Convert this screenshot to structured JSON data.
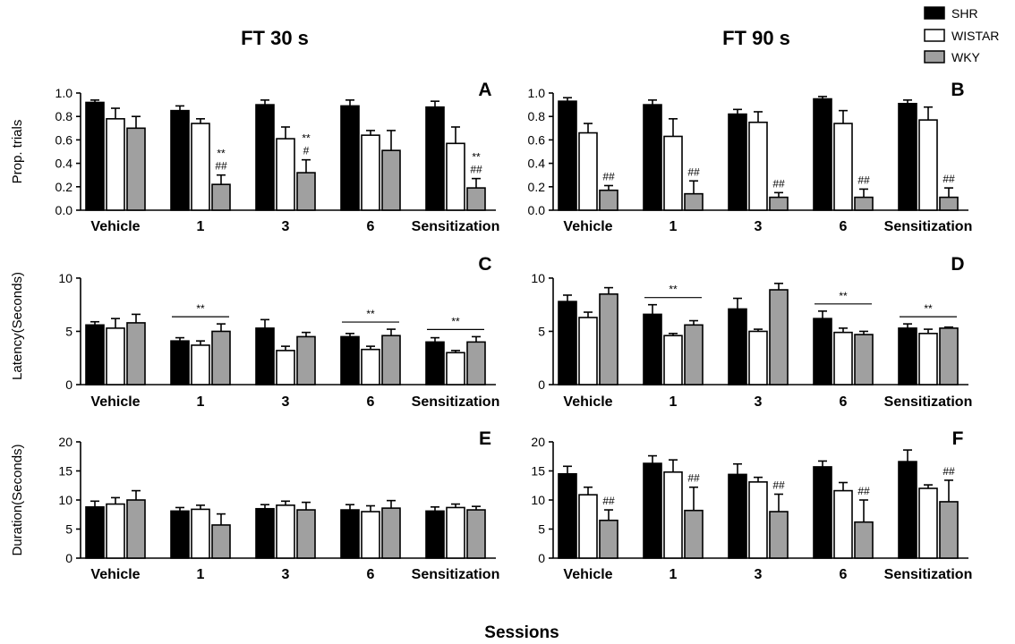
{
  "figure": {
    "col_titles": [
      "FT 30 s",
      "FT 90 s"
    ],
    "xlabel": "Sessions",
    "legend": [
      {
        "label": "SHR",
        "color": "#000000"
      },
      {
        "label": "WISTAR",
        "color": "#ffffff"
      },
      {
        "label": "WKY",
        "color": "#a0a0a0"
      }
    ]
  },
  "chart_data": [
    {
      "panel": "A",
      "type": "bar",
      "ylabel": "Prop. trials",
      "ylim": [
        0,
        1.0
      ],
      "yticks": [
        "0.0",
        "0.2",
        "0.4",
        "0.6",
        "0.8",
        "1.0"
      ],
      "categories": [
        "Vehicle",
        "1",
        "3",
        "6",
        "Sensitization"
      ],
      "series": [
        {
          "name": "SHR",
          "values": [
            0.92,
            0.85,
            0.9,
            0.89,
            0.88
          ],
          "errors": [
            0.02,
            0.04,
            0.04,
            0.05,
            0.05
          ]
        },
        {
          "name": "WISTAR",
          "values": [
            0.78,
            0.74,
            0.61,
            0.64,
            0.57
          ],
          "errors": [
            0.09,
            0.04,
            0.1,
            0.04,
            0.14
          ]
        },
        {
          "name": "WKY",
          "values": [
            0.7,
            0.22,
            0.32,
            0.51,
            0.19
          ],
          "errors": [
            0.1,
            0.08,
            0.11,
            0.17,
            0.08
          ]
        }
      ],
      "annotations": [
        {
          "category": "1",
          "lines": [
            "**",
            "##"
          ]
        },
        {
          "category": "3",
          "lines": [
            "**",
            "#"
          ]
        },
        {
          "category": "Sensitization",
          "lines": [
            "**",
            "##"
          ]
        }
      ]
    },
    {
      "panel": "B",
      "type": "bar",
      "ylabel": "",
      "ylim": [
        0,
        1.0
      ],
      "yticks": [
        "0.0",
        "0.2",
        "0.4",
        "0.6",
        "0.8",
        "1.0"
      ],
      "categories": [
        "Vehicle",
        "1",
        "3",
        "6",
        "Sensitization"
      ],
      "series": [
        {
          "name": "SHR",
          "values": [
            0.93,
            0.9,
            0.82,
            0.95,
            0.91
          ],
          "errors": [
            0.03,
            0.04,
            0.04,
            0.02,
            0.03
          ]
        },
        {
          "name": "WISTAR",
          "values": [
            0.66,
            0.63,
            0.75,
            0.74,
            0.77
          ],
          "errors": [
            0.08,
            0.15,
            0.09,
            0.11,
            0.11
          ]
        },
        {
          "name": "WKY",
          "values": [
            0.17,
            0.14,
            0.11,
            0.11,
            0.11
          ],
          "errors": [
            0.04,
            0.11,
            0.04,
            0.07,
            0.08
          ]
        }
      ],
      "annotations": [
        {
          "category": "Vehicle",
          "lines": [
            "##"
          ]
        },
        {
          "category": "1",
          "lines": [
            "##"
          ]
        },
        {
          "category": "3",
          "lines": [
            "##"
          ]
        },
        {
          "category": "6",
          "lines": [
            "##"
          ]
        },
        {
          "category": "Sensitization",
          "lines": [
            "##"
          ]
        }
      ]
    },
    {
      "panel": "C",
      "type": "bar",
      "ylabel": "Latency(Seconds)",
      "ylim": [
        0,
        11
      ],
      "yticks": [
        "0",
        "5",
        "10"
      ],
      "categories": [
        "Vehicle",
        "1",
        "3",
        "6",
        "Sensitization"
      ],
      "series": [
        {
          "name": "SHR",
          "values": [
            5.6,
            4.1,
            5.3,
            4.5,
            4.0
          ],
          "errors": [
            0.3,
            0.3,
            0.8,
            0.3,
            0.4
          ]
        },
        {
          "name": "WISTAR",
          "values": [
            5.3,
            3.7,
            3.2,
            3.3,
            3.0
          ],
          "errors": [
            0.9,
            0.4,
            0.4,
            0.3,
            0.2
          ]
        },
        {
          "name": "WKY",
          "values": [
            5.8,
            5.0,
            4.5,
            4.6,
            4.0
          ],
          "errors": [
            0.8,
            0.7,
            0.4,
            0.6,
            0.5
          ]
        }
      ],
      "brackets": [
        {
          "category": "1",
          "label": "**"
        },
        {
          "category": "6",
          "label": "**"
        },
        {
          "category": "Sensitization",
          "label": "**"
        }
      ]
    },
    {
      "panel": "D",
      "type": "bar",
      "ylabel": "",
      "ylim": [
        0,
        11
      ],
      "yticks": [
        "0",
        "5",
        "10"
      ],
      "categories": [
        "Vehicle",
        "1",
        "3",
        "6",
        "Sensitization"
      ],
      "series": [
        {
          "name": "SHR",
          "values": [
            7.8,
            6.6,
            7.1,
            6.2,
            5.3
          ],
          "errors": [
            0.6,
            0.9,
            1.0,
            0.7,
            0.4
          ]
        },
        {
          "name": "WISTAR",
          "values": [
            6.3,
            4.6,
            5.0,
            4.9,
            4.8
          ],
          "errors": [
            0.5,
            0.2,
            0.2,
            0.4,
            0.4
          ]
        },
        {
          "name": "WKY",
          "values": [
            8.5,
            5.6,
            8.9,
            4.7,
            5.3
          ],
          "errors": [
            0.6,
            0.4,
            0.6,
            0.3,
            0.1
          ]
        }
      ],
      "brackets": [
        {
          "category": "1",
          "label": "**"
        },
        {
          "category": "6",
          "label": "**"
        },
        {
          "category": "Sensitization",
          "label": "**"
        }
      ]
    },
    {
      "panel": "E",
      "type": "bar",
      "ylabel": "Duration(Seconds)",
      "ylim": [
        0,
        20
      ],
      "yticks": [
        "0",
        "5",
        "10",
        "15",
        "20"
      ],
      "categories": [
        "Vehicle",
        "1",
        "3",
        "6",
        "Sensitization"
      ],
      "series": [
        {
          "name": "SHR",
          "values": [
            8.8,
            8.1,
            8.5,
            8.3,
            8.1
          ],
          "errors": [
            1.0,
            0.6,
            0.7,
            0.9,
            0.7
          ]
        },
        {
          "name": "WISTAR",
          "values": [
            9.3,
            8.4,
            9.1,
            8.0,
            8.7
          ],
          "errors": [
            1.1,
            0.7,
            0.7,
            1.0,
            0.6
          ]
        },
        {
          "name": "WKY",
          "values": [
            10.0,
            5.7,
            8.3,
            8.6,
            8.3
          ],
          "errors": [
            1.6,
            1.9,
            1.3,
            1.3,
            0.6
          ]
        }
      ]
    },
    {
      "panel": "F",
      "type": "bar",
      "ylabel": "",
      "ylim": [
        0,
        20
      ],
      "yticks": [
        "0",
        "5",
        "10",
        "15",
        "20"
      ],
      "categories": [
        "Vehicle",
        "1",
        "3",
        "6",
        "Sensitization"
      ],
      "series": [
        {
          "name": "SHR",
          "values": [
            14.5,
            16.3,
            14.4,
            15.7,
            16.6
          ],
          "errors": [
            1.3,
            1.3,
            1.8,
            1.0,
            2.0
          ]
        },
        {
          "name": "WISTAR",
          "values": [
            10.9,
            14.8,
            13.1,
            11.6,
            12.0
          ],
          "errors": [
            1.3,
            2.1,
            0.8,
            1.4,
            0.6
          ]
        },
        {
          "name": "WKY",
          "values": [
            6.5,
            8.2,
            8.0,
            6.2,
            9.7
          ],
          "errors": [
            1.8,
            4.0,
            3.0,
            3.8,
            3.7
          ]
        }
      ],
      "annotations": [
        {
          "category": "Vehicle",
          "lines": [
            "##"
          ]
        },
        {
          "category": "1",
          "lines": [
            "##"
          ]
        },
        {
          "category": "3",
          "lines": [
            "##"
          ]
        },
        {
          "category": "6",
          "lines": [
            "##"
          ]
        },
        {
          "category": "Sensitization",
          "lines": [
            "##"
          ]
        }
      ]
    }
  ]
}
